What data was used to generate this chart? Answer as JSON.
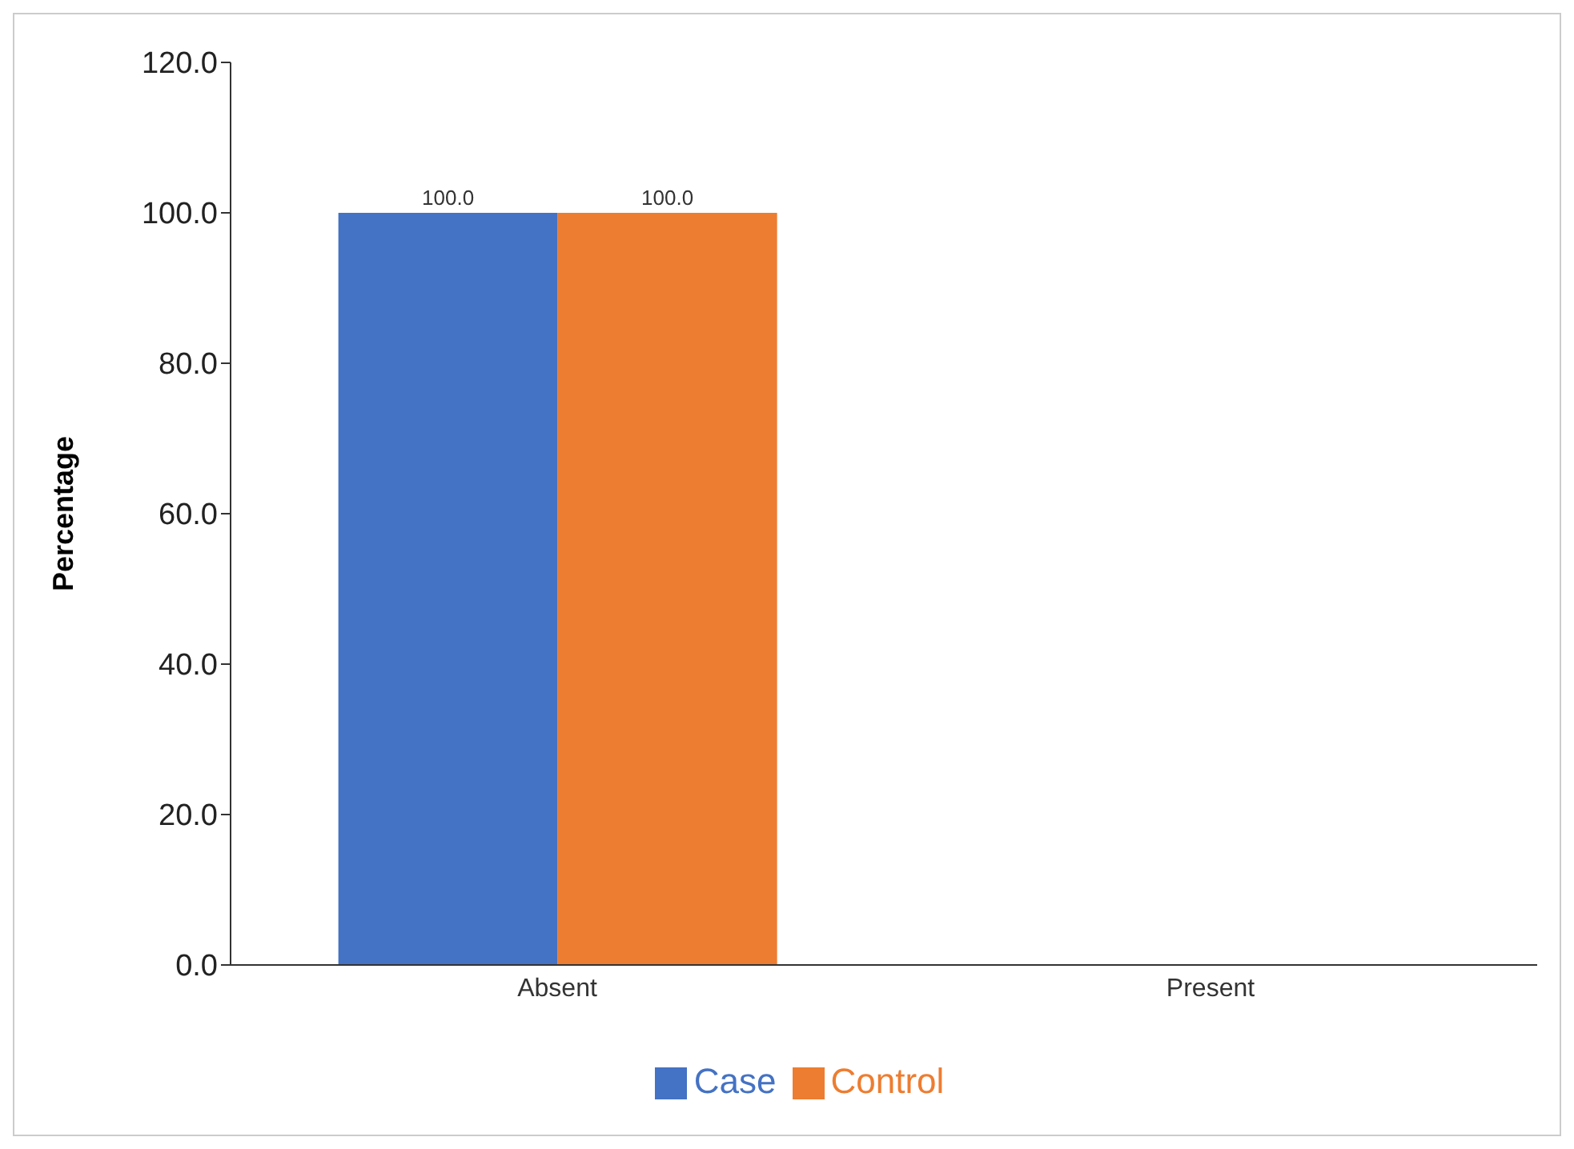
{
  "chart_data": {
    "type": "bar",
    "ylabel": "Percentage",
    "categories": [
      "Absent",
      "Present"
    ],
    "series": [
      {
        "name": "Case",
        "color": "#4472c4",
        "values": [
          100.0,
          0
        ],
        "value_labels": [
          "100.0",
          null
        ]
      },
      {
        "name": "Control",
        "color": "#ed7d31",
        "values": [
          100.0,
          0
        ],
        "value_labels": [
          "100.0",
          null
        ]
      }
    ],
    "ylim": [
      0,
      120
    ],
    "yticks": [
      {
        "value": 0,
        "label": "0.0"
      },
      {
        "value": 20,
        "label": "20.0"
      },
      {
        "value": 40,
        "label": "40.0"
      },
      {
        "value": 60,
        "label": "60.0"
      },
      {
        "value": 80,
        "label": "80.0"
      },
      {
        "value": 100,
        "label": "100.0"
      },
      {
        "value": 120,
        "label": "120.0"
      }
    ],
    "grid": false,
    "legend": "bottom"
  }
}
